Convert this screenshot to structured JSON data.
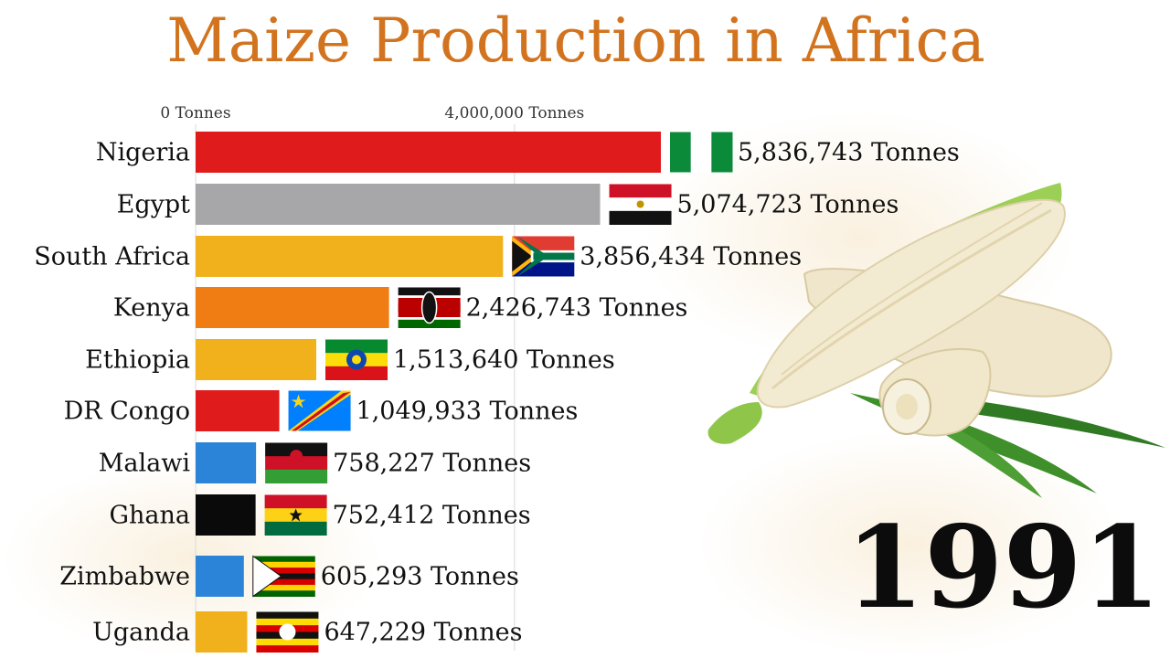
{
  "chart_data": {
    "type": "bar",
    "title": "Maize Production in Africa",
    "year": "1991",
    "x_ticks": [
      {
        "value": 0,
        "label": "0 Tonnes"
      },
      {
        "value": 4000000,
        "label": "4,000,000 Tonnes"
      }
    ],
    "xlim": [
      0,
      6000000
    ],
    "categories": [
      "Nigeria",
      "Egypt",
      "South Africa",
      "Kenya",
      "Ethiopia",
      "DR Congo",
      "Malawi",
      "Ghana",
      "Zimbabwe",
      "Uganda"
    ],
    "values": [
      5836743,
      5074723,
      3856434,
      2426743,
      1513640,
      1049933,
      758227,
      752412,
      605293,
      647229
    ],
    "value_labels": [
      "5,836,743 Tonnes",
      "5,074,723 Tonnes",
      "3,856,434 Tonnes",
      "2,426,743 Tonnes",
      "1,513,640 Tonnes",
      "1,049,933 Tonnes",
      "758,227 Tonnes",
      "752,412 Tonnes",
      "605,293 Tonnes",
      "647,229 Tonnes"
    ],
    "bar_colors": [
      "#e01b1b",
      "#a7a7aa",
      "#f0b11d",
      "#f07d14",
      "#f0b11d",
      "#e01b1b",
      "#2b84d8",
      "#0a0a0a",
      "#2b84d8",
      "#f0b11d"
    ],
    "flags": [
      "nigeria-flag",
      "egypt-flag",
      "south-africa-flag",
      "kenya-flag",
      "ethiopia-flag",
      "dr-congo-flag",
      "malawi-flag",
      "ghana-flag",
      "zimbabwe-flag",
      "uganda-flag"
    ]
  },
  "colors": {
    "title": "#d2741f",
    "gridline": "#d9d9d9"
  },
  "illustration": "corn-cob-illustration"
}
